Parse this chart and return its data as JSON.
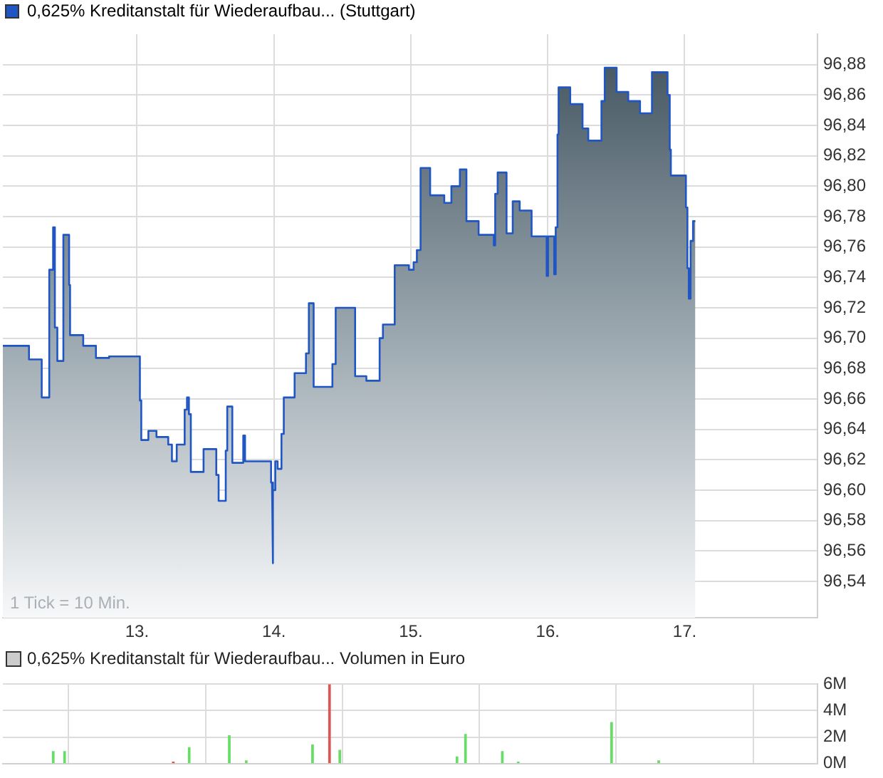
{
  "chart_data": [
    {
      "type": "area",
      "annotations": [
        "1 Tick = 10 Min."
      ],
      "legend": "top left",
      "grid": true,
      "xlim": [
        12.02,
        17.97
      ],
      "xticks": [
        {
          "value": 13,
          "label": "13."
        },
        {
          "value": 14,
          "label": "14."
        },
        {
          "value": 15,
          "label": "15."
        },
        {
          "value": 16,
          "label": "16."
        },
        {
          "value": 17,
          "label": "17."
        }
      ],
      "ylim": [
        96.516,
        96.9
      ],
      "yticks": [
        {
          "value": 96.54,
          "label": "96,54"
        },
        {
          "value": 96.56,
          "label": "96,56"
        },
        {
          "value": 96.58,
          "label": "96,58"
        },
        {
          "value": 96.6,
          "label": "96,60"
        },
        {
          "value": 96.62,
          "label": "96,62"
        },
        {
          "value": 96.64,
          "label": "96,64"
        },
        {
          "value": 96.66,
          "label": "96,66"
        },
        {
          "value": 96.68,
          "label": "96,68"
        },
        {
          "value": 96.7,
          "label": "96,70"
        },
        {
          "value": 96.72,
          "label": "96,72"
        },
        {
          "value": 96.74,
          "label": "96,74"
        },
        {
          "value": 96.76,
          "label": "96,76"
        },
        {
          "value": 96.78,
          "label": "96,78"
        },
        {
          "value": 96.8,
          "label": "96,80"
        },
        {
          "value": 96.82,
          "label": "96,82"
        },
        {
          "value": 96.84,
          "label": "96,84"
        },
        {
          "value": 96.86,
          "label": "96,86"
        },
        {
          "value": 96.88,
          "label": "96,88"
        }
      ],
      "series": [
        {
          "name": "0,625% Kreditanstalt für Wiederaufbau... (Stuttgart)",
          "color": "#1f56c3",
          "x": [
            12.02,
            12.211,
            12.211,
            12.304,
            12.304,
            12.359,
            12.359,
            12.387,
            12.387,
            12.4,
            12.4,
            12.418,
            12.418,
            12.462,
            12.462,
            12.504,
            12.504,
            12.511,
            12.511,
            12.607,
            12.607,
            12.7,
            12.7,
            12.796,
            12.796,
            13.021,
            13.021,
            13.031,
            13.031,
            13.083,
            13.083,
            13.142,
            13.142,
            13.228,
            13.228,
            13.255,
            13.255,
            13.29,
            13.29,
            13.348,
            13.348,
            13.365,
            13.365,
            13.379,
            13.379,
            13.393,
            13.393,
            13.486,
            13.486,
            13.579,
            13.579,
            13.596,
            13.596,
            13.648,
            13.648,
            13.659,
            13.659,
            13.696,
            13.696,
            13.776,
            13.776,
            13.789,
            13.789,
            13.979,
            13.979,
            13.986,
            13.986,
            13.996,
            13.996,
            14.01,
            14.01,
            14.027,
            14.027,
            14.055,
            14.055,
            14.072,
            14.072,
            14.151,
            14.151,
            14.234,
            14.234,
            14.255,
            14.255,
            14.29,
            14.29,
            14.427,
            14.427,
            14.451,
            14.451,
            14.593,
            14.593,
            14.675,
            14.675,
            14.772,
            14.772,
            14.796,
            14.796,
            14.882,
            14.882,
            14.986,
            14.986,
            15.02,
            15.02,
            15.044,
            15.044,
            15.071,
            15.071,
            15.141,
            15.141,
            15.244,
            15.244,
            15.296,
            15.296,
            15.358,
            15.358,
            15.406,
            15.406,
            15.495,
            15.495,
            15.606,
            15.606,
            15.616,
            15.616,
            15.634,
            15.634,
            15.699,
            15.699,
            15.744,
            15.744,
            15.795,
            15.795,
            15.882,
            15.882,
            15.992,
            15.992,
            16.002,
            16.002,
            16.047,
            16.047,
            16.058,
            16.058,
            16.071,
            16.071,
            16.079,
            16.079,
            16.164,
            16.164,
            16.254,
            16.254,
            16.296,
            16.296,
            16.392,
            16.392,
            16.416,
            16.416,
            16.503,
            16.503,
            16.588,
            16.588,
            16.674,
            16.674,
            16.761,
            16.761,
            16.875,
            16.875,
            16.891,
            16.891,
            16.899,
            16.899,
            17.009,
            17.009,
            17.02,
            17.02,
            17.03,
            17.03,
            17.043,
            17.043,
            17.061,
            17.061,
            17.078
          ],
          "values": [
            96.695,
            96.695,
            96.686,
            96.686,
            96.661,
            96.661,
            96.745,
            96.745,
            96.773,
            96.773,
            96.707,
            96.707,
            96.685,
            96.685,
            96.768,
            96.768,
            96.735,
            96.735,
            96.702,
            96.702,
            96.695,
            96.695,
            96.687,
            96.687,
            96.688,
            96.688,
            96.659,
            96.659,
            96.633,
            96.633,
            96.639,
            96.639,
            96.635,
            96.635,
            96.63,
            96.63,
            96.619,
            96.619,
            96.63,
            96.63,
            96.653,
            96.653,
            96.661,
            96.661,
            96.65,
            96.65,
            96.612,
            96.612,
            96.627,
            96.627,
            96.61,
            96.61,
            96.593,
            96.593,
            96.626,
            96.626,
            96.655,
            96.655,
            96.618,
            96.618,
            96.636,
            96.636,
            96.619,
            96.619,
            96.605,
            96.605,
            96.552,
            96.552,
            96.6,
            96.6,
            96.619,
            96.619,
            96.614,
            96.614,
            96.637,
            96.637,
            96.661,
            96.661,
            96.677,
            96.677,
            96.69,
            96.69,
            96.723,
            96.723,
            96.668,
            96.668,
            96.683,
            96.683,
            96.72,
            96.72,
            96.675,
            96.675,
            96.672,
            96.672,
            96.7,
            96.7,
            96.709,
            96.709,
            96.748,
            96.748,
            96.745,
            96.745,
            96.75,
            96.75,
            96.758,
            96.758,
            96.812,
            96.812,
            96.794,
            96.794,
            96.789,
            96.789,
            96.8,
            96.8,
            96.811,
            96.811,
            96.777,
            96.777,
            96.768,
            96.768,
            96.761,
            96.761,
            96.795,
            96.795,
            96.809,
            96.809,
            96.769,
            96.769,
            96.79,
            96.79,
            96.784,
            96.784,
            96.767,
            96.767,
            96.741,
            96.741,
            96.767,
            96.767,
            96.742,
            96.742,
            96.773,
            96.773,
            96.834,
            96.834,
            96.865,
            96.865,
            96.854,
            96.854,
            96.838,
            96.838,
            96.83,
            96.83,
            96.856,
            96.856,
            96.878,
            96.878,
            96.862,
            96.862,
            96.856,
            96.856,
            96.848,
            96.848,
            96.875,
            96.875,
            96.86,
            96.86,
            96.824,
            96.824,
            96.807,
            96.807,
            96.786,
            96.786,
            96.746,
            96.746,
            96.726,
            96.726,
            96.764,
            96.764,
            96.777,
            96.777
          ]
        }
      ]
    },
    {
      "type": "bar",
      "title": "0,625% Kreditanstalt für Wiederaufbau... Volumen in Euro",
      "grid": true,
      "tick_labels": "y",
      "xlim": [
        12.02,
        17.97
      ],
      "xticks": [
        {
          "value": 13,
          "label": null
        },
        {
          "value": 14,
          "label": null
        },
        {
          "value": 15,
          "label": null
        },
        {
          "value": 16,
          "label": null
        },
        {
          "value": 17,
          "label": null
        }
      ],
      "ylim": [
        0,
        6
      ],
      "yticks": [
        {
          "value": 0,
          "label": "0M"
        },
        {
          "value": 2,
          "label": "2M"
        },
        {
          "value": 4,
          "label": "4M"
        },
        {
          "value": 6,
          "label": "6M"
        }
      ],
      "x": [
        12.388,
        12.471,
        13.265,
        13.381,
        13.674,
        13.798,
        14.282,
        14.406,
        14.481,
        15.337,
        15.399,
        15.668,
        15.784,
        16.466,
        16.81
      ],
      "values": [
        0.9,
        0.9,
        0.1,
        1.2,
        2.1,
        0.2,
        1.4,
        6,
        1.0,
        0.5,
        2.2,
        0.9,
        0.1,
        3.1,
        0.2
      ],
      "colors": [
        "#66dd66",
        "#66dd66",
        "#dd5555",
        "#66dd66",
        "#66dd66",
        "#66dd66",
        "#66dd66",
        "#dd5555",
        "#66dd66",
        "#66dd66",
        "#66dd66",
        "#66dd66",
        "#66dd66",
        "#66dd66",
        "#66dd66"
      ]
    }
  ]
}
